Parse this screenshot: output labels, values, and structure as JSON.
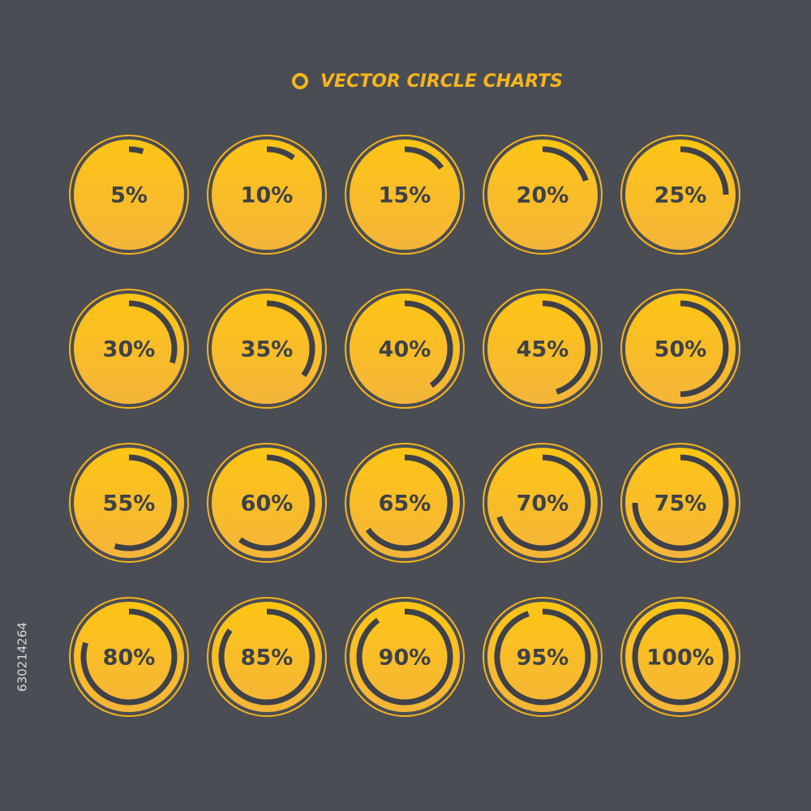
{
  "title": "VECTOR CIRCLE CHARTS",
  "stock_id": "630214264",
  "chart_data": [
    {
      "type": "ring",
      "values": [
        5
      ],
      "value_labels": [
        "5%"
      ]
    },
    {
      "type": "ring",
      "values": [
        10
      ],
      "value_labels": [
        "10%"
      ]
    },
    {
      "type": "ring",
      "values": [
        15
      ],
      "value_labels": [
        "15%"
      ]
    },
    {
      "type": "ring",
      "values": [
        20
      ],
      "value_labels": [
        "20%"
      ]
    },
    {
      "type": "ring",
      "values": [
        25
      ],
      "value_labels": [
        "25%"
      ]
    },
    {
      "type": "ring",
      "values": [
        30
      ],
      "value_labels": [
        "30%"
      ]
    },
    {
      "type": "ring",
      "values": [
        35
      ],
      "value_labels": [
        "35%"
      ]
    },
    {
      "type": "ring",
      "values": [
        40
      ],
      "value_labels": [
        "40%"
      ]
    },
    {
      "type": "ring",
      "values": [
        45
      ],
      "value_labels": [
        "45%"
      ]
    },
    {
      "type": "ring",
      "values": [
        50
      ],
      "value_labels": [
        "50%"
      ]
    },
    {
      "type": "ring",
      "values": [
        55
      ],
      "value_labels": [
        "55%"
      ]
    },
    {
      "type": "ring",
      "values": [
        60
      ],
      "value_labels": [
        "60%"
      ]
    },
    {
      "type": "ring",
      "values": [
        65
      ],
      "value_labels": [
        "65%"
      ]
    },
    {
      "type": "ring",
      "values": [
        70
      ],
      "value_labels": [
        "70%"
      ]
    },
    {
      "type": "ring",
      "values": [
        75
      ],
      "value_labels": [
        "75%"
      ]
    },
    {
      "type": "ring",
      "values": [
        80
      ],
      "value_labels": [
        "80%"
      ]
    },
    {
      "type": "ring",
      "values": [
        85
      ],
      "value_labels": [
        "85%"
      ]
    },
    {
      "type": "ring",
      "values": [
        90
      ],
      "value_labels": [
        "90%"
      ]
    },
    {
      "type": "ring",
      "values": [
        95
      ],
      "value_labels": [
        "95%"
      ]
    },
    {
      "type": "ring",
      "values": [
        100
      ],
      "value_labels": [
        "100%"
      ]
    }
  ]
}
